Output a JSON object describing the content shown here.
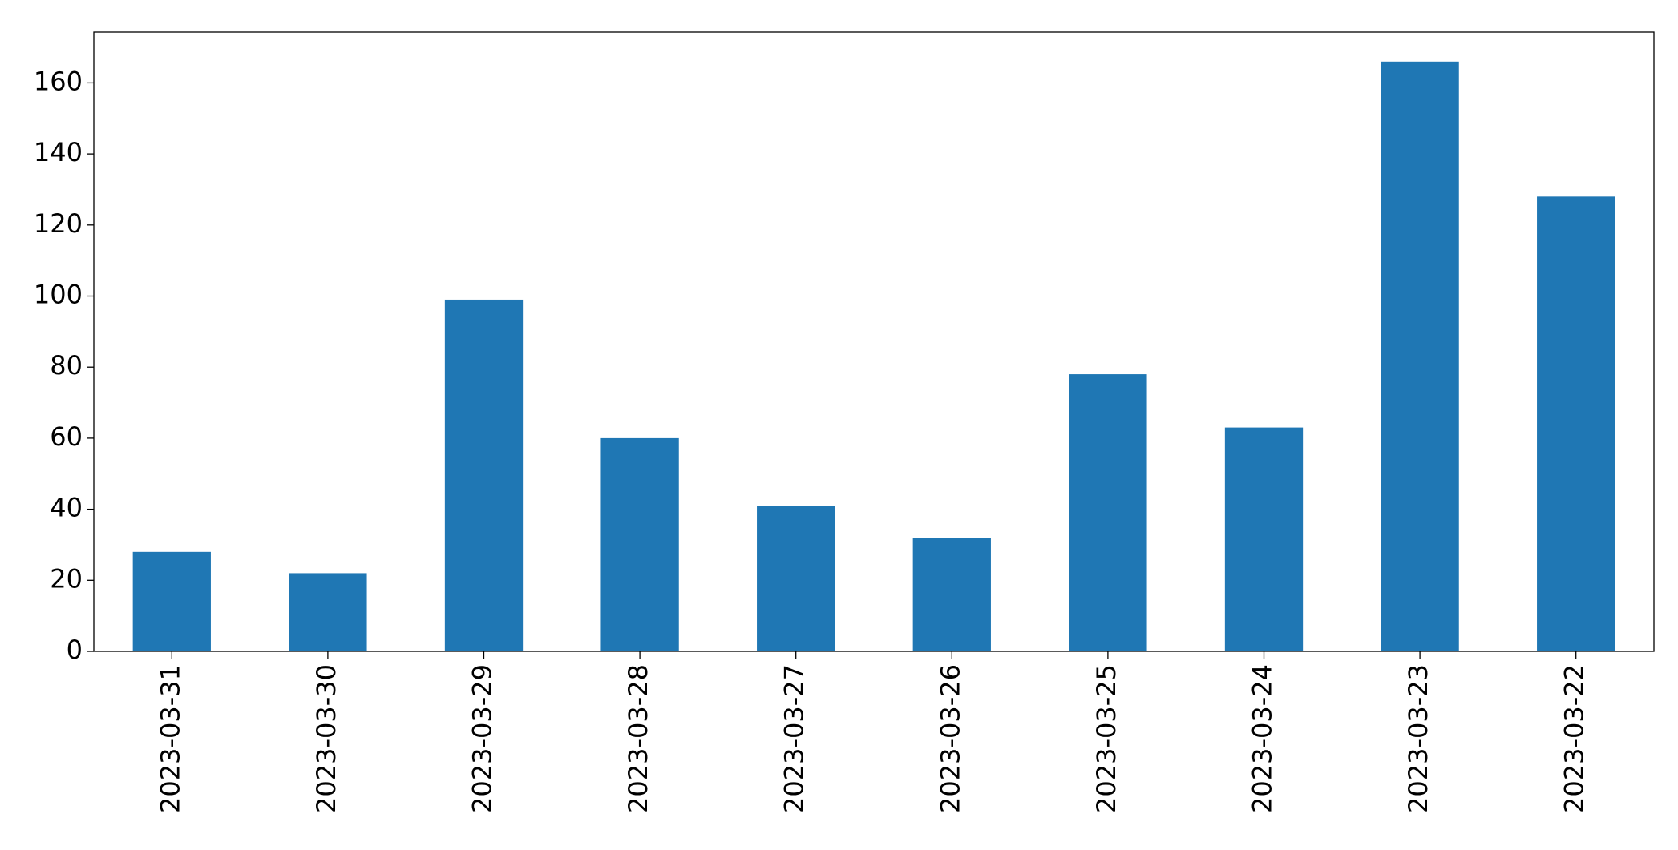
{
  "chart_data": {
    "type": "bar",
    "categories": [
      "2023-03-31",
      "2023-03-30",
      "2023-03-29",
      "2023-03-28",
      "2023-03-27",
      "2023-03-26",
      "2023-03-25",
      "2023-03-24",
      "2023-03-23",
      "2023-03-22"
    ],
    "values": [
      28,
      22,
      99,
      60,
      41,
      32,
      78,
      63,
      166,
      128
    ],
    "color": "#1f77b4",
    "ylim": [
      0,
      174.3
    ],
    "yticks": [
      0,
      20,
      40,
      60,
      80,
      100,
      120,
      140,
      160
    ],
    "grid": false
  }
}
